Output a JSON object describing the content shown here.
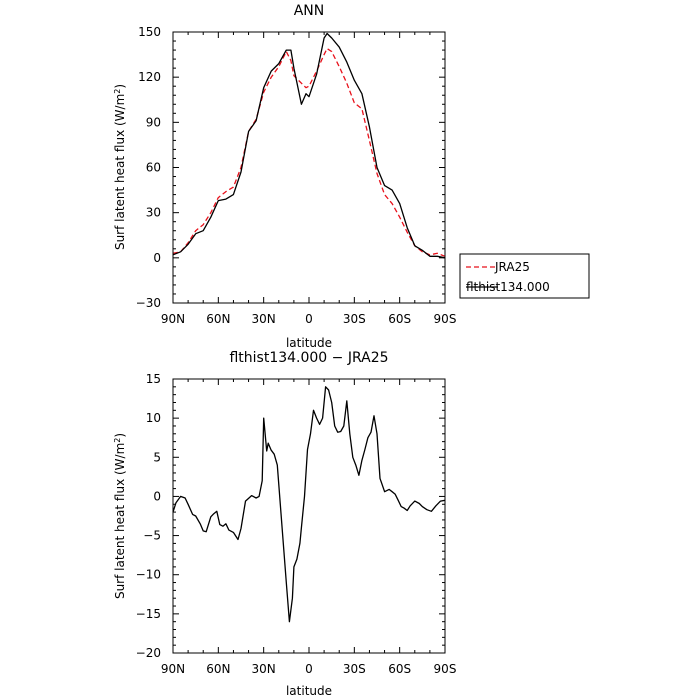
{
  "chart_data": [
    {
      "type": "line",
      "title": "ANN",
      "xlabel": "latitude",
      "ylabel_main": "Surf latent heat flux (W/m",
      "ylabel_sup": "2",
      "ylabel_end": ")",
      "xlim": [
        90,
        -90
      ],
      "ylim": [
        -30,
        150
      ],
      "xticks": [
        90,
        60,
        30,
        0,
        -30,
        -60,
        -90
      ],
      "xticklabels": [
        "90N",
        "60N",
        "30N",
        "0",
        "30S",
        "60S",
        "90S"
      ],
      "yticks": [
        -30,
        0,
        30,
        60,
        90,
        120,
        150
      ],
      "yticklabels": [
        "−30",
        "0",
        "30",
        "60",
        "90",
        "120",
        "150"
      ],
      "legend_position": "right",
      "series": [
        {
          "name": "JRA25",
          "color": "#e8111b",
          "dashed": true,
          "x": [
            90,
            85,
            80,
            75,
            70,
            65,
            60,
            55,
            50,
            45,
            40,
            35,
            30,
            25,
            20,
            15,
            12,
            10,
            5,
            2,
            0,
            -5,
            -10,
            -12,
            -15,
            -20,
            -25,
            -30,
            -35,
            -40,
            -45,
            -50,
            -55,
            -60,
            -65,
            -70,
            -75,
            -80,
            -85,
            -90
          ],
          "y": [
            3,
            4,
            10,
            18,
            22,
            30,
            40,
            44,
            47,
            60,
            84,
            92,
            110,
            120,
            127,
            137,
            131,
            121,
            116,
            113,
            114,
            124,
            135,
            139,
            137,
            127,
            116,
            103,
            99,
            78,
            56,
            42,
            36,
            27,
            17,
            8,
            4,
            2,
            3,
            1
          ]
        },
        {
          "name": "flthist134.000",
          "color": "#000000",
          "dashed": false,
          "x": [
            90,
            85,
            80,
            75,
            70,
            65,
            60,
            55,
            50,
            45,
            40,
            35,
            30,
            25,
            20,
            15,
            12,
            10,
            5,
            2,
            0,
            -5,
            -10,
            -12,
            -15,
            -20,
            -25,
            -30,
            -35,
            -40,
            -45,
            -50,
            -55,
            -60,
            -65,
            -70,
            -75,
            -80,
            -85,
            -90
          ],
          "y": [
            2,
            4,
            9,
            16,
            18,
            27,
            38,
            39,
            42,
            57,
            84,
            91,
            113,
            124,
            129,
            138,
            138,
            126,
            102,
            109,
            107,
            122,
            146,
            149,
            146,
            140,
            130,
            118,
            109,
            87,
            60,
            48,
            45,
            36,
            20,
            8,
            5,
            1,
            1,
            0
          ]
        }
      ]
    },
    {
      "type": "line",
      "title": "flthist134.000 − JRA25",
      "xlabel": "latitude",
      "ylabel_main": "Surf latent heat flux (W/m",
      "ylabel_sup": "2",
      "ylabel_end": ")",
      "xlim": [
        90,
        -90
      ],
      "ylim": [
        -20,
        15
      ],
      "xticks": [
        90,
        60,
        30,
        0,
        -30,
        -60,
        -90
      ],
      "xticklabels": [
        "90N",
        "60N",
        "30N",
        "0",
        "30S",
        "60S",
        "90S"
      ],
      "yticks": [
        -20,
        -15,
        -10,
        -5,
        0,
        5,
        10,
        15
      ],
      "yticklabels": [
        "−20",
        "−15",
        "−10",
        "−5",
        "0",
        "5",
        "10",
        "15"
      ],
      "series": [
        {
          "color": "#000000",
          "dashed": false,
          "x": [
            90,
            88,
            85,
            82,
            80,
            77,
            75,
            72,
            70,
            68,
            65,
            63,
            61,
            59,
            57,
            55,
            53,
            50,
            47,
            45,
            42,
            38,
            35,
            33,
            31,
            30,
            28,
            27,
            25,
            23,
            21,
            19,
            17,
            15,
            13,
            11,
            10,
            8,
            6,
            5,
            3,
            1,
            -1,
            -3,
            -5,
            -7,
            -9,
            -11,
            -13,
            -15,
            -17,
            -19,
            -21,
            -23,
            -25,
            -27,
            -29,
            -31,
            -33,
            -35,
            -37,
            -39,
            -41,
            -43,
            -45,
            -47,
            -50,
            -53,
            -55,
            -57,
            -59,
            -61,
            -63,
            -65,
            -67,
            -70,
            -73,
            -75,
            -78,
            -81,
            -84,
            -87,
            -90
          ],
          "y": [
            -2,
            -0.8,
            0,
            -0.2,
            -1,
            -2.3,
            -2.5,
            -3.5,
            -4.4,
            -4.5,
            -2.6,
            -2.2,
            -1.9,
            -3.6,
            -3.8,
            -3.5,
            -4.3,
            -4.6,
            -5.5,
            -4.1,
            -0.6,
            0.1,
            -0.2,
            0,
            2,
            10,
            5.8,
            6.8,
            5.9,
            5.4,
            4,
            -1,
            -6,
            -11,
            -16,
            -13,
            -9,
            -8,
            -6,
            -4,
            0,
            6,
            8,
            11,
            10,
            9.2,
            10,
            14,
            13.6,
            12,
            9,
            8.2,
            8.3,
            9,
            12.2,
            8,
            5,
            4,
            2.7,
            4.6,
            6,
            7.5,
            8.2,
            10.3,
            8,
            2.3,
            0.6,
            0.9,
            0.6,
            0.3,
            -0.5,
            -1.3,
            -1.5,
            -1.8,
            -1.2,
            -0.6,
            -0.9,
            -1.3,
            -1.7,
            -1.9,
            -1.2,
            -0.6,
            -0.5
          ]
        }
      ]
    }
  ]
}
